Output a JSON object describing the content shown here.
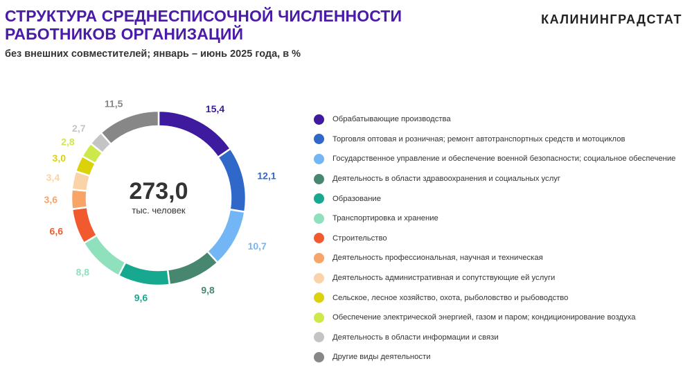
{
  "header": {
    "title": "СТРУКТУРА СРЕДНЕСПИСОЧНОЙ ЧИСЛЕННОСТИ РАБОТНИКОВ ОРГАНИЗАЦИЙ",
    "subtitle": "без внешних совместителей; январь – июнь 2025 года, в %",
    "brand": "КАЛИНИНГРАДСТАТ"
  },
  "chart_data": {
    "type": "pie",
    "title": "СТРУКТУРА СРЕДНЕСПИСОЧНОЙ ЧИСЛЕННОСТИ РАБОТНИКОВ ОРГАНИЗАЦИЙ",
    "subtitle": "без внешних совместителей; январь – июнь 2025 года, в %",
    "center_value": "273,0",
    "center_label": "тыс. человек",
    "legend_position": "right",
    "slices": [
      {
        "label": "Обрабатывающие производства",
        "value": 15.4,
        "display": "15,4",
        "color": "#3d1a9e"
      },
      {
        "label": "Торговля оптовая и розничная; ремонт автотранспортных средств и мотоциклов",
        "value": 12.1,
        "display": "12,1",
        "color": "#2f68c8"
      },
      {
        "label": "Государственное управление и обеспечение военной безопасности; социальное обеспечение",
        "value": 10.7,
        "display": "10,7",
        "color": "#72b6f5"
      },
      {
        "label": "Деятельность в области здравоохранения и социальных услуг",
        "value": 9.8,
        "display": "9,8",
        "color": "#47876f"
      },
      {
        "label": "Образование",
        "value": 9.6,
        "display": "9,6",
        "color": "#17a98f"
      },
      {
        "label": "Транспортировка и хранение",
        "value": 8.8,
        "display": "8,8",
        "color": "#8fe0bd"
      },
      {
        "label": "Строительство",
        "value": 6.6,
        "display": "6,6",
        "color": "#f15a2e"
      },
      {
        "label": "Деятельность профессиональная, научная и техническая",
        "value": 3.6,
        "display": "3,6",
        "color": "#f7a466"
      },
      {
        "label": "Деятельность административная и сопутствующие ей услуги",
        "value": 3.4,
        "display": "3,4",
        "color": "#fbd3a8"
      },
      {
        "label": "Сельское, лесное хозяйство, охота, рыболовство и рыбоводство",
        "value": 3.0,
        "display": "3,0",
        "color": "#dcd20a"
      },
      {
        "label": "Обеспечение электрической энергией, газом и паром; кондиционирование воздуха",
        "value": 2.8,
        "display": "2,8",
        "color": "#cce84a"
      },
      {
        "label": "Деятельность в области информации и связи",
        "value": 2.7,
        "display": "2,7",
        "color": "#c4c4c4"
      },
      {
        "label": "Другие виды деятельности",
        "value": 11.5,
        "display": "11,5",
        "color": "#878787"
      }
    ]
  }
}
